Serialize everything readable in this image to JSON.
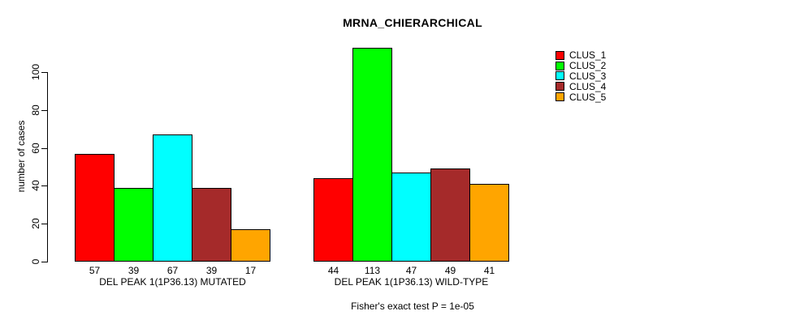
{
  "chart_data": {
    "type": "bar",
    "title": "MRNA_CHIERARCHICAL",
    "subtitle": "Fisher's exact test P = 1e-05",
    "ylabel": "number of cases",
    "xlabel": "",
    "ylim": [
      0,
      113
    ],
    "y_ticks": [
      0,
      20,
      40,
      60,
      80,
      100
    ],
    "grid": false,
    "legend_position": "top-right",
    "bar_value_labels": true,
    "categories": [
      "DEL PEAK 1(1P36.13) MUTATED",
      "DEL PEAK 1(1P36.13) WILD-TYPE"
    ],
    "series": [
      {
        "name": "CLUS_1",
        "color": "#FF0000",
        "values": [
          57,
          44
        ]
      },
      {
        "name": "CLUS_2",
        "color": "#00FF00",
        "values": [
          39,
          113
        ]
      },
      {
        "name": "CLUS_3",
        "color": "#00FFFF",
        "values": [
          67,
          47
        ]
      },
      {
        "name": "CLUS_4",
        "color": "#A52A2A",
        "values": [
          39,
          49
        ]
      },
      {
        "name": "CLUS_5",
        "color": "#FFA500",
        "values": [
          17,
          41
        ]
      }
    ],
    "colors": {
      "background": "#FFFFFF",
      "axis": "#000000",
      "text": "#000000"
    }
  }
}
